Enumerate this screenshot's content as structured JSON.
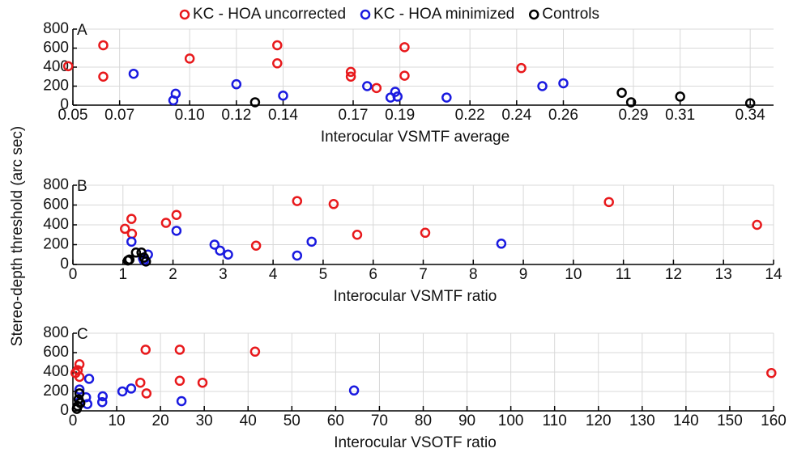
{
  "chart_data": [
    {
      "type": "scatter",
      "panel_label": "A",
      "xlabel": "Interocular VSMTF average",
      "xlim": [
        0.05,
        0.35
      ],
      "ylim": [
        0,
        800
      ],
      "xticks": [
        0.05,
        0.07,
        {
          "value": 0.1,
          "label": "0.10"
        },
        0.12,
        0.14,
        0.17,
        0.19,
        0.22,
        0.24,
        0.26,
        0.29,
        0.31,
        0.34
      ],
      "yticks": [
        0,
        200,
        400,
        600,
        800
      ],
      "grid": true,
      "series": [
        {
          "name": "KC - HOA uncorrected",
          "color": "#e8191c",
          "x": [
            0.048,
            0.063,
            0.063,
            0.1,
            0.1375,
            0.1375,
            0.169,
            0.169,
            0.18,
            0.192,
            0.192,
            0.242
          ],
          "values": [
            410,
            630,
            300,
            490,
            630,
            440,
            350,
            300,
            180,
            610,
            310,
            390
          ]
        },
        {
          "name": "KC - HOA minimized",
          "color": "#1a1ae0",
          "x": [
            0.076,
            0.094,
            0.093,
            0.12,
            0.14,
            0.176,
            0.188,
            0.189,
            0.186,
            0.21,
            0.251,
            0.26
          ],
          "values": [
            330,
            120,
            50,
            220,
            100,
            200,
            140,
            90,
            80,
            80,
            200,
            230
          ]
        },
        {
          "name": "Controls",
          "color": "#000000",
          "x": [
            0.128,
            0.285,
            0.289,
            0.31,
            0.34
          ],
          "values": [
            30,
            130,
            30,
            90,
            20
          ]
        }
      ]
    },
    {
      "type": "scatter",
      "panel_label": "B",
      "xlabel": "Interocular VSMTF ratio",
      "ylabel": "Stereo-depth threshold (arc sec)",
      "xlim": [
        0,
        14
      ],
      "ylim": [
        0,
        800
      ],
      "xticks": [
        0,
        1,
        2,
        3,
        4,
        5,
        6,
        7,
        8,
        9,
        10,
        11,
        12,
        13,
        14
      ],
      "yticks": [
        0,
        200,
        400,
        600,
        800
      ],
      "grid": true,
      "series": [
        {
          "name": "KC - HOA uncorrected",
          "color": "#e8191c",
          "x": [
            1.04,
            1.17,
            1.18,
            1.86,
            2.07,
            3.66,
            4.48,
            5.21,
            5.68,
            7.04,
            10.71,
            13.67
          ],
          "values": [
            360,
            460,
            310,
            420,
            500,
            190,
            640,
            610,
            300,
            320,
            630,
            400
          ]
        },
        {
          "name": "KC - HOA minimized",
          "color": "#1a1ae0",
          "x": [
            1.17,
            2.07,
            2.83,
            2.94,
            3.1,
            4.77,
            4.48,
            8.56,
            1.4,
            1.5,
            1.42
          ],
          "values": [
            230,
            340,
            200,
            140,
            100,
            230,
            90,
            210,
            60,
            100,
            40
          ]
        },
        {
          "name": "Controls",
          "color": "#000000",
          "x": [
            1.1,
            1.13,
            1.26,
            1.37,
            1.42,
            1.46
          ],
          "values": [
            40,
            50,
            120,
            120,
            70,
            30
          ]
        }
      ]
    },
    {
      "type": "scatter",
      "panel_label": "C",
      "xlabel": "Interocular VSOTF ratio",
      "xlim": [
        0,
        160
      ],
      "ylim": [
        0,
        800
      ],
      "xticks": [
        0,
        10,
        20,
        30,
        40,
        50,
        60,
        70,
        80,
        90,
        100,
        110,
        120,
        130,
        140,
        150,
        160
      ],
      "yticks": [
        0,
        200,
        400,
        600,
        800
      ],
      "grid": true,
      "series": [
        {
          "name": "KC - HOA uncorrected",
          "color": "#e8191c",
          "x": [
            1.5,
            1.1,
            1.5,
            0.6,
            16.6,
            24.4,
            15.4,
            16.8,
            24.4,
            29.6,
            41.6,
            159.5
          ],
          "values": [
            480,
            420,
            350,
            390,
            630,
            630,
            290,
            180,
            310,
            290,
            610,
            390
          ]
        },
        {
          "name": "KC - HOA minimized",
          "color": "#1a1ae0",
          "x": [
            3.7,
            1.5,
            3,
            1.5,
            3.3,
            6.8,
            6.7,
            11.3,
            13.3,
            24.8,
            64.2
          ],
          "values": [
            330,
            220,
            140,
            90,
            70,
            150,
            90,
            200,
            230,
            100,
            210
          ]
        },
        {
          "name": "Controls",
          "color": "#000000",
          "x": [
            1.1,
            1.3,
            1.5,
            0.9,
            1.7
          ],
          "values": [
            50,
            120,
            180,
            20,
            80
          ]
        }
      ]
    }
  ]
}
